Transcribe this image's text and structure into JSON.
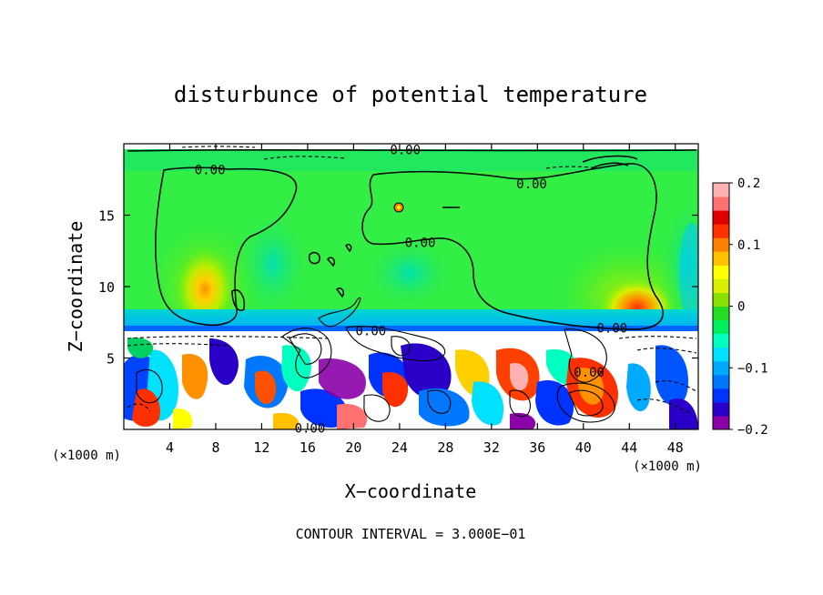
{
  "chart_data": {
    "type": "heatmap",
    "title": "disturbunce of potential temperature",
    "xlabel": "X−coordinate",
    "ylabel": "Z−coordinate",
    "x_unit": "(×1000 m)",
    "x_unit_right": "(×1000 m)",
    "xlim": [
      0,
      50
    ],
    "ylim": [
      0,
      20
    ],
    "x_ticks": [
      4,
      8,
      12,
      16,
      20,
      24,
      28,
      32,
      36,
      40,
      44,
      48
    ],
    "y_ticks": [
      5,
      10,
      15
    ],
    "colorbar": {
      "min": -0.2,
      "max": 0.2,
      "tick_values": [
        0.2,
        0.1,
        0,
        -0.1,
        -0.2
      ],
      "tick_labels": [
        "0.2",
        "0.1",
        "0",
        "−0.1",
        "−0.2"
      ],
      "colors": [
        "#8b00a8",
        "#2a00c8",
        "#0033ff",
        "#0077ff",
        "#00aaff",
        "#00e0ff",
        "#00ffc0",
        "#00f060",
        "#22dd22",
        "#88e000",
        "#d8f000",
        "#ffff00",
        "#ffc000",
        "#ff8000",
        "#ff3000",
        "#e00000",
        "#ff7070",
        "#ffb0b0"
      ]
    },
    "contour_labels": [
      {
        "text": "0.00",
        "x": 24.5,
        "y": 19.6
      },
      {
        "text": "0.00",
        "x": 7.5,
        "y": 18.2
      },
      {
        "text": "0.00",
        "x": 35.5,
        "y": 17.2
      },
      {
        "text": "0.00",
        "x": 25.8,
        "y": 13.1
      },
      {
        "text": "0.00",
        "x": 21.5,
        "y": 6.9
      },
      {
        "text": "0.00",
        "x": 42.5,
        "y": 7.1
      },
      {
        "text": "0.00",
        "x": 40.5,
        "y": 4.0
      },
      {
        "text": "0.00",
        "x": 16.2,
        "y": 0.1
      }
    ],
    "footer": "CONTOUR INTERVAL = 3.000E−01"
  }
}
